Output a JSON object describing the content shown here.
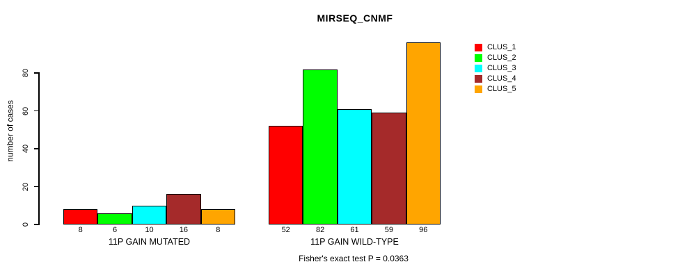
{
  "chart_data": {
    "type": "bar",
    "title": "MIRSEQ_CNMF",
    "ylabel": "number of cases",
    "xlabel": "",
    "yticks": [
      0,
      20,
      40,
      60,
      80
    ],
    "ylim": [
      0,
      96
    ],
    "grid": false,
    "legend_position": "right",
    "categories": [
      "11P GAIN MUTATED",
      "11P GAIN WILD-TYPE"
    ],
    "series": [
      {
        "name": "CLUS_1",
        "color": "#FF0000",
        "values": [
          8,
          52
        ]
      },
      {
        "name": "CLUS_2",
        "color": "#00FF00",
        "values": [
          6,
          82
        ]
      },
      {
        "name": "CLUS_3",
        "color": "#00FFFF",
        "values": [
          10,
          61
        ]
      },
      {
        "name": "CLUS_4",
        "color": "#A52A2A",
        "values": [
          16,
          59
        ]
      },
      {
        "name": "CLUS_5",
        "color": "#FFA500",
        "values": [
          8,
          96
        ]
      }
    ],
    "bar_value_labels_shown": true,
    "annotation": "Fisher's exact test P = 0.0363",
    "axis_color": "#000000",
    "background_color": "#FFFFFF"
  }
}
